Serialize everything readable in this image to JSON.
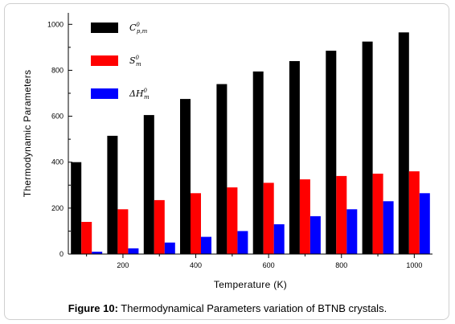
{
  "chart_data": {
    "type": "bar",
    "x": [
      100,
      200,
      300,
      400,
      500,
      600,
      700,
      800,
      900,
      1000
    ],
    "x_tick_labels": [
      "200",
      "400",
      "600",
      "800",
      "1000"
    ],
    "y_tick_labels": [
      "0",
      "200",
      "400",
      "600",
      "800",
      "1000"
    ],
    "ylim": [
      0,
      1050
    ],
    "xlabel": "Temperature (K)",
    "ylabel": "Thermodynamic Parameters",
    "legend_position": "top-left",
    "grid": false,
    "series": [
      {
        "name": "C_p,m^0",
        "legend_main": "C",
        "legend_sup": "0",
        "legend_sub": "p,m",
        "color": "#000000",
        "values": [
          400,
          515,
          605,
          675,
          740,
          795,
          840,
          885,
          925,
          965
        ]
      },
      {
        "name": "S_m^0",
        "legend_main": "S",
        "legend_sup": "0",
        "legend_sub": "m",
        "color": "#ff0000",
        "values": [
          140,
          195,
          235,
          265,
          290,
          310,
          325,
          340,
          350,
          360
        ]
      },
      {
        "name": "ΔH_m^0",
        "legend_main": "ΔH",
        "legend_sup": "0",
        "legend_sub": "m",
        "color": "#0000ff",
        "values": [
          10,
          25,
          50,
          75,
          100,
          130,
          165,
          195,
          230,
          265
        ]
      }
    ]
  },
  "caption": {
    "label": "Figure 10:",
    "text": " Thermodynamical Parameters variation of BTNB crystals."
  }
}
